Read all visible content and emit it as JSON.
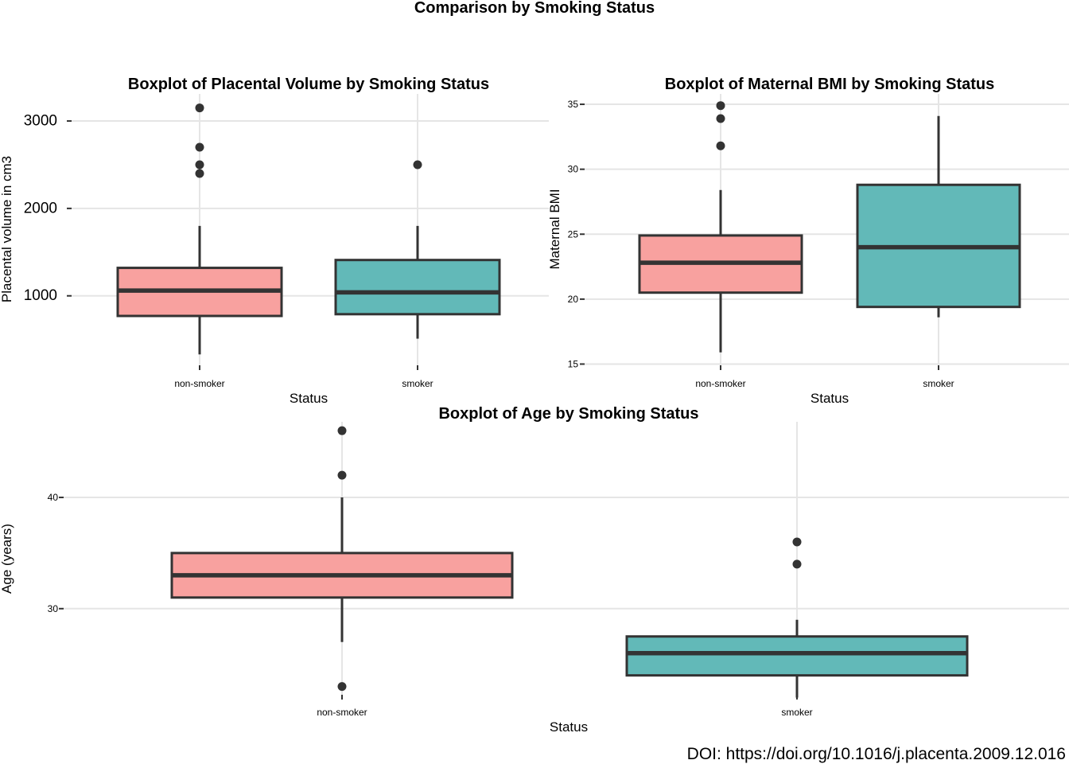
{
  "figure": {
    "title": "Comparison by Smoking Status",
    "doi": "DOI: https://doi.org/10.1016/j.placenta.2009.12.016"
  },
  "colors": {
    "non_smoker_fill": "#f8a19f",
    "smoker_fill": "#62b9b8",
    "box_stroke": "#333333",
    "outlier": "#333333",
    "grid": "#e5e5e5",
    "tick": "#333333"
  },
  "chart_data": [
    {
      "type": "boxplot",
      "title": "Boxplot of Placental Volume by Smoking Status",
      "xlabel": "Status",
      "ylabel": "Placental volume in cm3",
      "categories": [
        "non-smoker",
        "smoker"
      ],
      "ylim": [
        160,
        3310
      ],
      "yticks": [
        1000,
        2000,
        3000
      ],
      "yticklabels": [
        "1000",
        "2000",
        "3000"
      ],
      "grid": true,
      "boxes": [
        {
          "name": "non-smoker",
          "fill_key": "non_smoker_fill",
          "whisker_low": 330,
          "q1": 770,
          "median": 1060,
          "q3": 1320,
          "whisker_high": 1800,
          "outliers": [
            2400,
            2500,
            2700,
            3150
          ]
        },
        {
          "name": "smoker",
          "fill_key": "smoker_fill",
          "whisker_low": 510,
          "q1": 790,
          "median": 1040,
          "q3": 1410,
          "whisker_high": 1800,
          "outliers": [
            2500
          ]
        }
      ]
    },
    {
      "type": "boxplot",
      "title": "Boxplot of Maternal BMI by Smoking Status",
      "xlabel": "Status",
      "ylabel": "Maternal BMI",
      "categories": [
        "non-smoker",
        "smoker"
      ],
      "ylim": [
        14.6,
        35.8
      ],
      "yticks": [
        15,
        20,
        25,
        30,
        35
      ],
      "yticklabels": [
        "15",
        "20",
        "25",
        "30",
        "35"
      ],
      "grid": true,
      "boxes": [
        {
          "name": "non-smoker",
          "fill_key": "non_smoker_fill",
          "whisker_low": 15.9,
          "q1": 20.5,
          "median": 22.8,
          "q3": 24.9,
          "whisker_high": 28.4,
          "outliers": [
            31.8,
            33.9,
            34.9
          ]
        },
        {
          "name": "smoker",
          "fill_key": "smoker_fill",
          "whisker_low": 18.6,
          "q1": 19.4,
          "median": 24.0,
          "q3": 28.8,
          "whisker_high": 34.1,
          "outliers": []
        }
      ]
    },
    {
      "type": "boxplot",
      "title": "Boxplot of Age by Smoking Status",
      "xlabel": "Status",
      "ylabel": "Age (years)",
      "categories": [
        "non-smoker",
        "smoker"
      ],
      "ylim": [
        21.9,
        46.8
      ],
      "yticks": [
        30,
        40
      ],
      "yticklabels": [
        "30",
        "40"
      ],
      "grid": true,
      "boxes": [
        {
          "name": "non-smoker",
          "fill_key": "non_smoker_fill",
          "whisker_low": 27,
          "q1": 31,
          "median": 33,
          "q3": 35,
          "whisker_high": 40,
          "outliers": [
            23,
            42,
            46
          ]
        },
        {
          "name": "smoker",
          "fill_key": "smoker_fill",
          "whisker_low": 22,
          "q1": 24,
          "median": 26,
          "q3": 27.5,
          "whisker_high": 29,
          "outliers": [
            34,
            36
          ]
        }
      ]
    }
  ]
}
